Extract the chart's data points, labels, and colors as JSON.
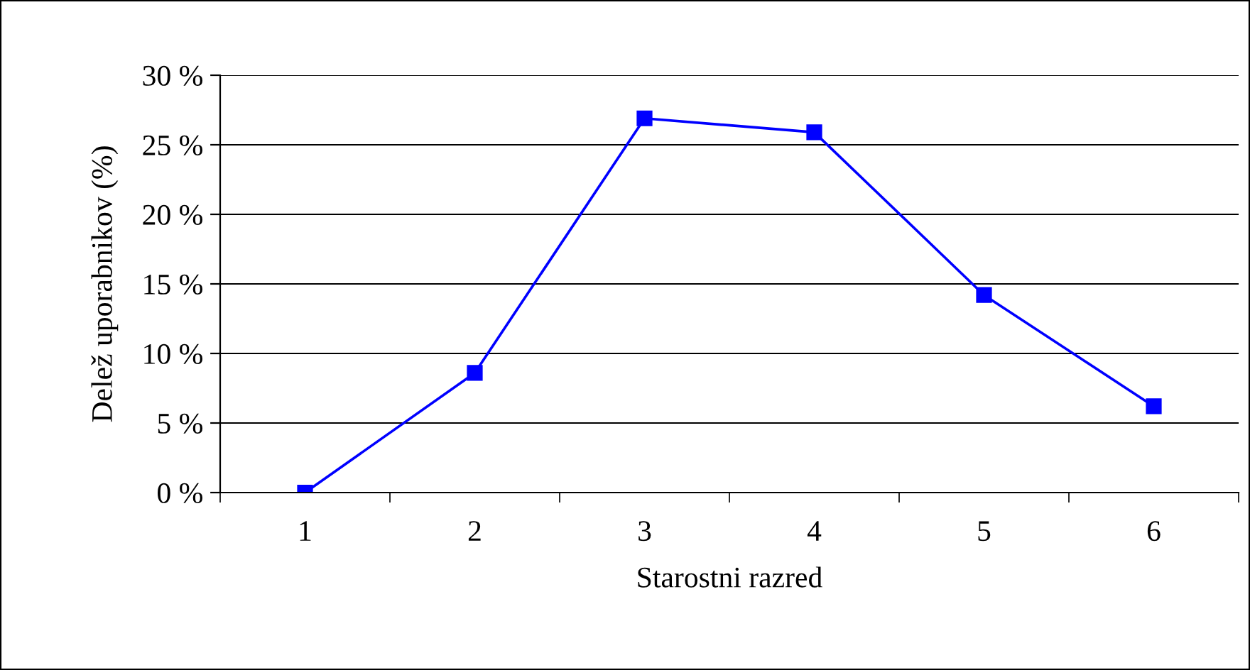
{
  "chart_data": {
    "type": "line",
    "xlabel": "Starostni razred",
    "ylabel": "Delež uporabnikov (%)",
    "categories": [
      "1",
      "2",
      "3",
      "4",
      "5",
      "6"
    ],
    "series": [
      {
        "color": "#0000ff",
        "values": [
          0,
          8.6,
          26.9,
          25.9,
          14.2,
          6.2
        ]
      }
    ],
    "ylim": [
      0,
      30
    ],
    "yticks": [
      {
        "value": 0,
        "label": "0 %"
      },
      {
        "value": 5,
        "label": "5 %"
      },
      {
        "value": 10,
        "label": "10 %"
      },
      {
        "value": 15,
        "label": "15 %"
      },
      {
        "value": 20,
        "label": "20 %"
      },
      {
        "value": 25,
        "label": "25 %"
      },
      {
        "value": 30,
        "label": "30 %"
      }
    ],
    "grid": "y",
    "marker": "square",
    "line_style": "solid"
  }
}
